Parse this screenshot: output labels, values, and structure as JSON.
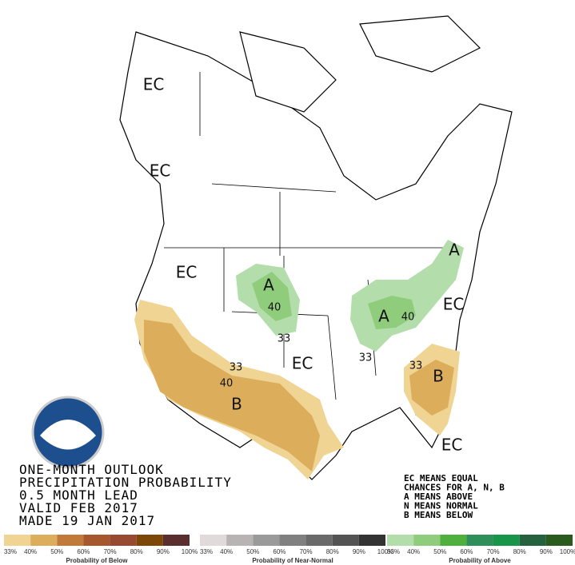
{
  "map": {
    "labels": [
      "EC",
      "EC",
      "EC",
      "EC",
      "EC",
      "EC",
      "A",
      "A",
      "A",
      "B",
      "B"
    ],
    "contours": [
      "40",
      "40",
      "40",
      "33",
      "33",
      "33",
      "33"
    ],
    "title_lines": [
      "ONE-MONTH OUTLOOK",
      "PRECIPITATION PROBABILITY",
      "0.5 MONTH LEAD",
      "VALID FEB 2017",
      "MADE 19 JAN 2017"
    ],
    "notes": [
      "EC MEANS EQUAL",
      "CHANCES FOR A, N, B",
      "A MEANS ABOVE",
      "N MEANS NORMAL",
      "B MEANS BELOW"
    ],
    "legends": [
      {
        "title": "Probability of Below",
        "labels": [
          "33%",
          "40%",
          "50%",
          "60%",
          "70%",
          "80%",
          "90%",
          "100%"
        ],
        "colors": [
          "#f0d493",
          "#dcae5c",
          "#c17a3a",
          "#a6572d",
          "#984a30",
          "#7d4708",
          "#5a2e2e"
        ]
      },
      {
        "title": "Probability of Near-Normal",
        "labels": [
          "33%",
          "40%",
          "50%",
          "60%",
          "70%",
          "80%",
          "90%",
          "100%"
        ],
        "colors": [
          "#e0dada",
          "#b9b4b4",
          "#9a9a9a",
          "#808080",
          "#6a6a6a",
          "#535353",
          "#333333"
        ]
      },
      {
        "title": "Probability of Above",
        "labels": [
          "33%",
          "40%",
          "50%",
          "60%",
          "70%",
          "80%",
          "90%",
          "100%"
        ],
        "colors": [
          "#b3deab",
          "#8fcc7c",
          "#4fb03e",
          "#2f8f5a",
          "#17964a",
          "#25613f",
          "#2a5a1e"
        ]
      }
    ]
  }
}
